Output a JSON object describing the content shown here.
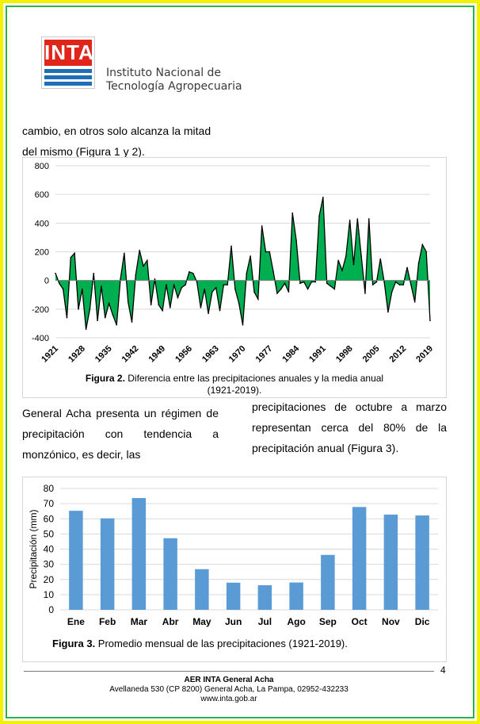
{
  "header": {
    "logo_text": "INTA",
    "institute_line1": "Instituto Nacional de",
    "institute_line2": "Tecnología Agropecuaria"
  },
  "text": {
    "para_line1": "cambio, en otros solo alcanza la mitad",
    "para_line2": "del mismo (Figura 1 y 2).",
    "left_col": "General Acha presenta un régimen de precipitación con tendencia a monzónico, es decir, las",
    "right_col": "precipitaciones de octubre a marzo representan cerca del 80% de la precipitación anual (Figura 3)."
  },
  "figure2": {
    "caption_bold": "Figura 2.",
    "caption_rest": " Diferencia entre las precipitaciones anuales y la media anual",
    "caption_line2": "(1921-2019)."
  },
  "figure3": {
    "caption_bold": "Figura 3.",
    "caption_rest": " Promedio mensual de las precipitaciones (1921-2019)."
  },
  "page_number": "4",
  "footer": {
    "org": "AER INTA General Acha",
    "address": "Avellaneda 530 (CP 8200) General Acha, La Pampa, 02952-432233",
    "web": "www.inta.gob.ar"
  },
  "colors": {
    "anomaly_fill": "#00b050",
    "bar_fill": "#5b9bd5",
    "inta_red": "#e1251b",
    "inta_blue": "#1e6fb8"
  },
  "chart_data": [
    {
      "type": "area",
      "title": "",
      "xlabel": "",
      "ylabel": "",
      "ylim": [
        -400,
        800
      ],
      "yticks": [
        -400,
        -200,
        0,
        200,
        400,
        600,
        800
      ],
      "xtick_labels": [
        "1921",
        "1928",
        "1935",
        "1942",
        "1949",
        "1956",
        "1963",
        "1970",
        "1977",
        "1984",
        "1991",
        "1998",
        "2005",
        "2012",
        "2019"
      ],
      "grid": true,
      "x": [
        1921,
        1922,
        1923,
        1924,
        1925,
        1926,
        1927,
        1928,
        1929,
        1930,
        1931,
        1932,
        1933,
        1934,
        1935,
        1936,
        1937,
        1938,
        1939,
        1940,
        1941,
        1942,
        1943,
        1944,
        1945,
        1946,
        1947,
        1948,
        1949,
        1950,
        1951,
        1952,
        1953,
        1954,
        1955,
        1956,
        1957,
        1958,
        1959,
        1960,
        1961,
        1962,
        1963,
        1964,
        1965,
        1966,
        1967,
        1968,
        1969,
        1970,
        1971,
        1972,
        1973,
        1974,
        1975,
        1976,
        1977,
        1978,
        1979,
        1980,
        1981,
        1982,
        1983,
        1984,
        1985,
        1986,
        1987,
        1988,
        1989,
        1990,
        1991,
        1992,
        1993,
        1994,
        1995,
        1996,
        1997,
        1998,
        1999,
        2000,
        2001,
        2002,
        2003,
        2004,
        2005,
        2006,
        2007,
        2008,
        2009,
        2010,
        2011,
        2012,
        2013,
        2014,
        2015,
        2016,
        2017,
        2018,
        2019
      ],
      "series": [
        {
          "values": [
            50,
            -20,
            -60,
            -260,
            160,
            190,
            -200,
            -60,
            -340,
            -200,
            50,
            -280,
            -40,
            -260,
            -160,
            -240,
            -310,
            10,
            190,
            -150,
            -290,
            40,
            210,
            100,
            140,
            -170,
            10,
            -170,
            -210,
            -30,
            -190,
            -30,
            -120,
            -50,
            -30,
            60,
            50,
            -10,
            -190,
            -60,
            -230,
            -80,
            -50,
            -210,
            -30,
            -30,
            240,
            -60,
            -160,
            -310,
            50,
            170,
            -80,
            -130,
            380,
            200,
            200,
            60,
            -90,
            -60,
            -20,
            -80,
            470,
            280,
            -20,
            -10,
            -60,
            -10,
            -10,
            450,
            580,
            -20,
            -40,
            -60,
            140,
            70,
            170,
            420,
            110,
            430,
            170,
            -90,
            430,
            -30,
            -10,
            150,
            -10,
            -220,
            -80,
            -10,
            -30,
            -30,
            90,
            -30,
            -150,
            120,
            250,
            200,
            -280
          ]
        }
      ]
    },
    {
      "type": "bar",
      "title": "",
      "xlabel": "",
      "ylabel": "Precipitación (mm)",
      "ylim": [
        0,
        80
      ],
      "yticks": [
        0,
        10,
        20,
        30,
        40,
        50,
        60,
        70,
        80
      ],
      "grid": true,
      "categories": [
        "Ene",
        "Feb",
        "Mar",
        "Abr",
        "May",
        "Jun",
        "Jul",
        "Ago",
        "Sep",
        "Oct",
        "Nov",
        "Dic"
      ],
      "values": [
        65.3,
        60.3,
        73.7,
        47.2,
        26.8,
        17.9,
        16.2,
        18.0,
        36.2,
        67.8,
        62.8,
        62.2
      ]
    }
  ]
}
